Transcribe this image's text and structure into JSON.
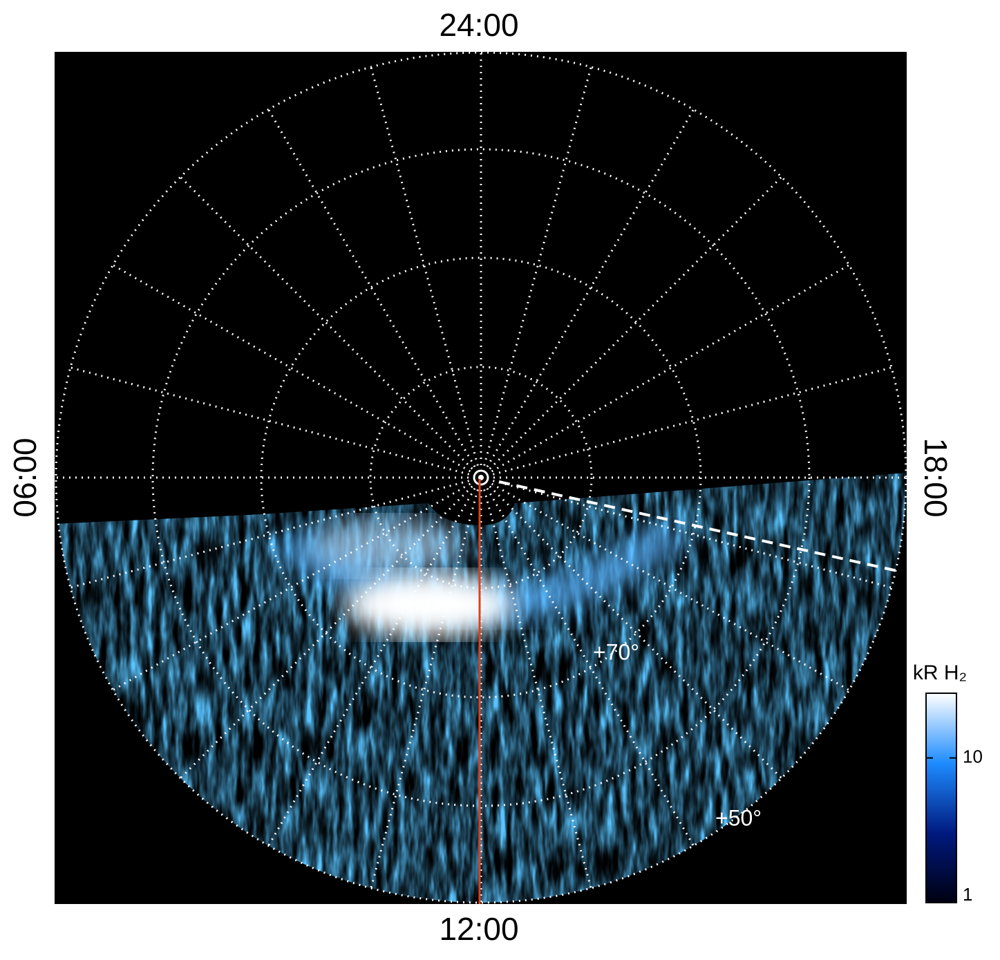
{
  "chart_data": {
    "type": "polar-map",
    "directions": {
      "top": "24:00",
      "bottom": "12:00",
      "left": "06:00",
      "right": "18:00"
    },
    "latitude_labels": [
      "+70°",
      "+50°"
    ],
    "colorbar": {
      "label": "kR H₂",
      "log": true,
      "lim": [
        1,
        28
      ],
      "ticks": [
        1,
        10
      ],
      "colors": [
        "#000010",
        "#001a80",
        "#1e8cff",
        "#ffffff"
      ]
    }
  }
}
